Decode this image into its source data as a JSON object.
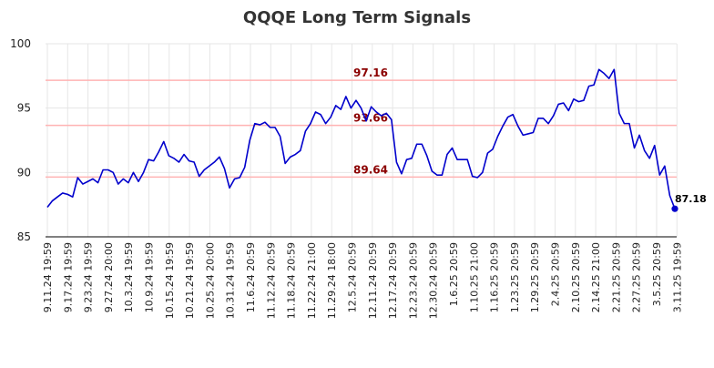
{
  "chart_data": {
    "type": "line",
    "title": "QQQE Long Term Signals",
    "xlabel": "",
    "ylabel": "",
    "ylim": [
      85,
      100
    ],
    "yticks": [
      85,
      90,
      95,
      100
    ],
    "grid": true,
    "line_color": "#0000cc",
    "reference_line_color": "#ffb3b3",
    "reference_label_color": "#8b0000",
    "x_tick_labels": [
      "9.11.24 19:59",
      "9.17.24 19:59",
      "9.23.24 19:59",
      "9.27.24 20:00",
      "10.3.24 19:59",
      "10.9.24 19:59",
      "10.15.24 19:59",
      "10.21.24 19:59",
      "10.25.24 20:00",
      "10.31.24 19:59",
      "11.6.24 20:59",
      "11.12.24 20:59",
      "11.18.24 20:59",
      "11.22.24 21:00",
      "11.29.24 18:00",
      "12.5.24 20:59",
      "12.11.24 20:59",
      "12.17.24 20:59",
      "12.23.24 20:59",
      "12.30.24 20:59",
      "1.6.25 20:59",
      "1.10.25 21:00",
      "1.16.25 20:59",
      "1.23.25 20:59",
      "1.29.25 20:59",
      "2.4.25 20:59",
      "2.10.25 20:59",
      "2.14.25 21:00",
      "2.21.25 20:59",
      "2.27.25 20:59",
      "3.5.25 20:59",
      "3.11.25 19:59"
    ],
    "reference_lines": [
      {
        "value": 97.16,
        "label": "97.16"
      },
      {
        "value": 93.66,
        "label": "93.66"
      },
      {
        "value": 89.64,
        "label": "89.64"
      }
    ],
    "last_value_label": "87.18",
    "series": [
      {
        "values": [
          87.3,
          87.8,
          88.1,
          88.4,
          88.3,
          88.1,
          89.6,
          89.1,
          89.3,
          89.5,
          89.2,
          90.2,
          90.2,
          90.0,
          89.1,
          89.5,
          89.2,
          90.0,
          89.3,
          90.0,
          91.0,
          90.9,
          91.6,
          92.4,
          91.3,
          91.1,
          90.8,
          91.4,
          90.9,
          90.8,
          89.7,
          90.2,
          90.5,
          90.8,
          91.2,
          90.3,
          88.8,
          89.5,
          89.6,
          90.4,
          92.5,
          93.8,
          93.7,
          93.9,
          93.5,
          93.5,
          92.8,
          90.7,
          91.2,
          91.4,
          91.7,
          93.2,
          93.8,
          94.7,
          94.5,
          93.8,
          94.3,
          95.2,
          94.9,
          95.9,
          95.0,
          95.6,
          95.0,
          94.0,
          95.1,
          94.7,
          94.4,
          94.6,
          94.1,
          90.8,
          89.9,
          91.0,
          91.1,
          92.2,
          92.2,
          91.3,
          90.1,
          89.8,
          89.8,
          91.4,
          91.9,
          91.0,
          91.0,
          91.0,
          89.7,
          89.6,
          90.0,
          91.5,
          91.8,
          92.8,
          93.6,
          94.3,
          94.5,
          93.6,
          92.9,
          93.0,
          93.1,
          94.2,
          94.2,
          93.8,
          94.4,
          95.3,
          95.4,
          94.8,
          95.7,
          95.5,
          95.6,
          96.7,
          96.8,
          98.0,
          97.7,
          97.3,
          98.0,
          94.6,
          93.8,
          93.8,
          91.9,
          92.9,
          91.7,
          91.1,
          92.1,
          89.8,
          90.5,
          88.2,
          87.18
        ]
      }
    ]
  }
}
